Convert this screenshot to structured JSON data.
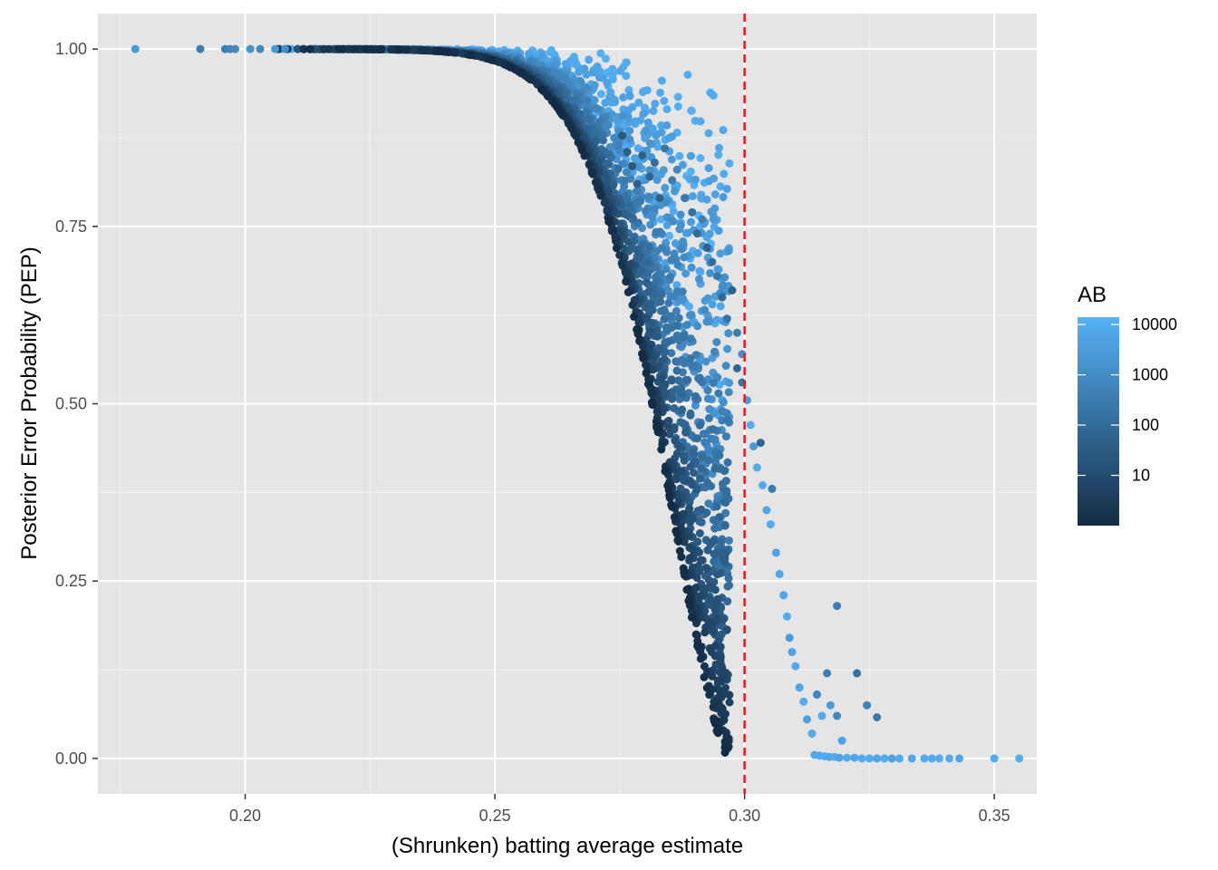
{
  "chart_data": {
    "type": "scatter",
    "title": "",
    "xlabel": "(Shrunken) batting average estimate",
    "ylabel": "Posterior Error Probability (PEP)",
    "xlim": [
      0.1705,
      0.3585
    ],
    "ylim": [
      -0.05,
      1.05
    ],
    "x_ticks": [
      0.2,
      0.25,
      0.3,
      0.35
    ],
    "x_tick_labels": [
      "0.20",
      "0.25",
      "0.30",
      "0.35"
    ],
    "y_ticks": [
      0.0,
      0.25,
      0.5,
      0.75,
      1.0
    ],
    "y_tick_labels": [
      "0.00",
      "0.25",
      "0.50",
      "0.75",
      "1.00"
    ],
    "grid": true,
    "panel_background": "#E5E5E5",
    "reference_line": {
      "x": 0.3,
      "color": "#E41A1C",
      "style": "dashed"
    },
    "color_scale": {
      "variable": "AB",
      "scale": "log10",
      "low_color": "#132B43",
      "high_color": "#56B1F7",
      "range": [
        1,
        14000
      ],
      "legend_ticks": [
        10,
        100,
        1000,
        10000
      ],
      "legend_labels": [
        "10",
        "100",
        "1000",
        "10000"
      ],
      "legend_placement": "right"
    },
    "points": [
      {
        "x": 0.178,
        "y": 1.0,
        "ab": 2000
      },
      {
        "x": 0.191,
        "y": 1.0,
        "ab": 300
      },
      {
        "x": 0.196,
        "y": 1.0,
        "ab": 400
      },
      {
        "x": 0.197,
        "y": 1.0,
        "ab": 500
      },
      {
        "x": 0.198,
        "y": 1.0,
        "ab": 800
      },
      {
        "x": 0.201,
        "y": 1.0,
        "ab": 1500
      },
      {
        "x": 0.203,
        "y": 1.0,
        "ab": 900
      },
      {
        "x": 0.206,
        "y": 1.0,
        "ab": 2500
      },
      {
        "x": 0.208,
        "y": 1.0,
        "ab": 1200
      },
      {
        "x": 0.2755,
        "y": 0.878,
        "ab": 30
      },
      {
        "x": 0.2765,
        "y": 0.855,
        "ab": 40
      },
      {
        "x": 0.2775,
        "y": 0.835,
        "ab": 25
      },
      {
        "x": 0.2785,
        "y": 0.81,
        "ab": 40
      },
      {
        "x": 0.2795,
        "y": 0.85,
        "ab": 50
      },
      {
        "x": 0.281,
        "y": 0.82,
        "ab": 60
      },
      {
        "x": 0.282,
        "y": 0.84,
        "ab": 120
      },
      {
        "x": 0.283,
        "y": 0.79,
        "ab": 50
      },
      {
        "x": 0.284,
        "y": 0.86,
        "ab": 200
      },
      {
        "x": 0.2855,
        "y": 0.815,
        "ab": 300
      },
      {
        "x": 0.2865,
        "y": 0.83,
        "ab": 700
      },
      {
        "x": 0.288,
        "y": 0.79,
        "ab": 250
      },
      {
        "x": 0.2895,
        "y": 0.77,
        "ab": 150
      },
      {
        "x": 0.2905,
        "y": 0.74,
        "ab": 90
      },
      {
        "x": 0.2915,
        "y": 0.76,
        "ab": 400
      },
      {
        "x": 0.2925,
        "y": 0.72,
        "ab": 60
      },
      {
        "x": 0.2935,
        "y": 0.7,
        "ab": 120
      },
      {
        "x": 0.2945,
        "y": 0.68,
        "ab": 250
      },
      {
        "x": 0.2955,
        "y": 0.65,
        "ab": 80
      },
      {
        "x": 0.2965,
        "y": 0.62,
        "ab": 200
      },
      {
        "x": 0.2975,
        "y": 0.66,
        "ab": 50
      },
      {
        "x": 0.2985,
        "y": 0.6,
        "ab": 350
      },
      {
        "x": 0.2995,
        "y": 0.57,
        "ab": 1200
      },
      {
        "x": 0.2985,
        "y": 0.55,
        "ab": 80
      },
      {
        "x": 0.2995,
        "y": 0.53,
        "ab": 150
      },
      {
        "x": 0.3005,
        "y": 0.505,
        "ab": 3000
      },
      {
        "x": 0.3012,
        "y": 0.47,
        "ab": 9000
      },
      {
        "x": 0.3018,
        "y": 0.44,
        "ab": 2500
      },
      {
        "x": 0.3025,
        "y": 0.41,
        "ab": 8000
      },
      {
        "x": 0.3032,
        "y": 0.445,
        "ab": 60
      },
      {
        "x": 0.3036,
        "y": 0.385,
        "ab": 9000
      },
      {
        "x": 0.3044,
        "y": 0.35,
        "ab": 6000
      },
      {
        "x": 0.3052,
        "y": 0.33,
        "ab": 9500
      },
      {
        "x": 0.3055,
        "y": 0.38,
        "ab": 300
      },
      {
        "x": 0.3063,
        "y": 0.29,
        "ab": 5000
      },
      {
        "x": 0.307,
        "y": 0.26,
        "ab": 7000
      },
      {
        "x": 0.3078,
        "y": 0.23,
        "ab": 6500
      },
      {
        "x": 0.3085,
        "y": 0.2,
        "ab": 9000
      },
      {
        "x": 0.309,
        "y": 0.17,
        "ab": 3000
      },
      {
        "x": 0.3095,
        "y": 0.15,
        "ab": 5000
      },
      {
        "x": 0.3102,
        "y": 0.13,
        "ab": 8000
      },
      {
        "x": 0.311,
        "y": 0.1,
        "ab": 6000
      },
      {
        "x": 0.3118,
        "y": 0.08,
        "ab": 9500
      },
      {
        "x": 0.3125,
        "y": 0.055,
        "ab": 4000
      },
      {
        "x": 0.3135,
        "y": 0.035,
        "ab": 9000
      },
      {
        "x": 0.3145,
        "y": 0.09,
        "ab": 600
      },
      {
        "x": 0.3155,
        "y": 0.06,
        "ab": 8000
      },
      {
        "x": 0.3165,
        "y": 0.12,
        "ab": 400
      },
      {
        "x": 0.3172,
        "y": 0.075,
        "ab": 3000
      },
      {
        "x": 0.3185,
        "y": 0.06,
        "ab": 700
      },
      {
        "x": 0.3195,
        "y": 0.025,
        "ab": 5000
      },
      {
        "x": 0.3185,
        "y": 0.215,
        "ab": 300
      },
      {
        "x": 0.3225,
        "y": 0.12,
        "ab": 150
      },
      {
        "x": 0.3245,
        "y": 0.075,
        "ab": 500
      },
      {
        "x": 0.3265,
        "y": 0.058,
        "ab": 250
      },
      {
        "x": 0.314,
        "y": 0.005,
        "ab": 7000
      },
      {
        "x": 0.315,
        "y": 0.004,
        "ab": 8000
      },
      {
        "x": 0.316,
        "y": 0.003,
        "ab": 9000
      },
      {
        "x": 0.317,
        "y": 0.002,
        "ab": 6000
      },
      {
        "x": 0.318,
        "y": 0.002,
        "ab": 9500
      },
      {
        "x": 0.319,
        "y": 0.001,
        "ab": 5000
      },
      {
        "x": 0.3205,
        "y": 0.001,
        "ab": 9000
      },
      {
        "x": 0.322,
        "y": 0.001,
        "ab": 7000
      },
      {
        "x": 0.3235,
        "y": 0.0,
        "ab": 9500
      },
      {
        "x": 0.325,
        "y": 0.0,
        "ab": 8000
      },
      {
        "x": 0.3265,
        "y": 0.0,
        "ab": 6000
      },
      {
        "x": 0.328,
        "y": 0.0,
        "ab": 9000
      },
      {
        "x": 0.3295,
        "y": 0.0,
        "ab": 5000
      },
      {
        "x": 0.331,
        "y": 0.0,
        "ab": 9000
      },
      {
        "x": 0.3335,
        "y": 0.0,
        "ab": 7000
      },
      {
        "x": 0.336,
        "y": 0.0,
        "ab": 9000
      },
      {
        "x": 0.3375,
        "y": 0.0,
        "ab": 8000
      },
      {
        "x": 0.339,
        "y": 0.0,
        "ab": 9500
      },
      {
        "x": 0.341,
        "y": 0.0,
        "ab": 9000
      },
      {
        "x": 0.343,
        "y": 0.0,
        "ab": 6000
      },
      {
        "x": 0.35,
        "y": 0.0,
        "ab": 9000
      },
      {
        "x": 0.355,
        "y": 0.0,
        "ab": 9500
      }
    ],
    "dense_band": {
      "description": "thousands of players, PEP near 1 for estimates below about 0.28, falling steeply between 0.28 and 0.315",
      "x_range": [
        0.205,
        0.297
      ],
      "ab_range": [
        1,
        14000
      ],
      "curve": "low-AB players lie on the lower edge PEP = 1 - exp(-((0.297 - x)/0.0195)^1.6); high-AB players cluster near PEP = 1"
    }
  }
}
